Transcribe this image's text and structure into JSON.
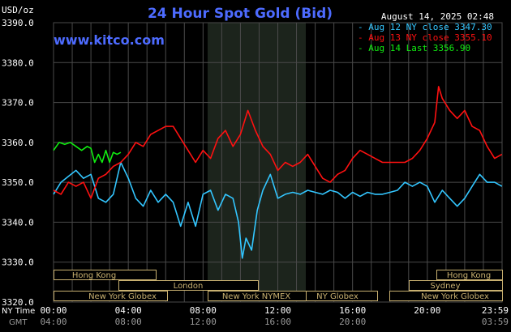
{
  "title": "24 Hour Spot Gold (Bid)",
  "unit_label": "USD/oz",
  "timestamp": "August 14, 2025 02:48",
  "watermark": "www.kitco.com",
  "row_labels": {
    "ny": "NY Time",
    "gmt": "GMT"
  },
  "colors": {
    "background": "#000000",
    "grid": "#4a4a4a",
    "nymex_shade": "#1c241c",
    "title": "#4d6bff",
    "aug12": "#33c6ff",
    "aug13": "#ff1111",
    "aug14": "#11ee11",
    "session_fill": "#000000",
    "session_stroke": "#c8b070",
    "session_text": "#c8b070",
    "axis_text": "#ffffff",
    "gmt_text": "#9a9a9a"
  },
  "legend": [
    {
      "label": "Aug 12 NY close 3347.30",
      "color": "#33c6ff"
    },
    {
      "label": "Aug 13 NY close 3355.10",
      "color": "#ff1111"
    },
    {
      "label": "Aug 14 Last 3356.90",
      "color": "#11ee11"
    }
  ],
  "sessions": [
    {
      "label": "Hong Kong"
    },
    {
      "label": "London"
    },
    {
      "label": "New York Globex"
    },
    {
      "label": "New York NYMEX"
    },
    {
      "label": "NY Globex"
    },
    {
      "label": "Hong Kong"
    },
    {
      "label": "Sydney"
    },
    {
      "label": "New York Globex"
    }
  ],
  "chart_data": {
    "type": "line",
    "ylim": [
      3320,
      3390
    ],
    "xlim": [
      0,
      24
    ],
    "yticks": [
      "3390.0",
      "3380.0",
      "3370.0",
      "3360.0",
      "3350.0",
      "3340.0",
      "3330.0",
      "3320.0"
    ],
    "xticks_ny": [
      "00:00",
      "04:00",
      "08:00",
      "12:00",
      "16:00",
      "20:00",
      "23:59"
    ],
    "xticks_gmt": [
      "04:00",
      "08:00",
      "12:00",
      "16:00",
      "20:00",
      "03:59"
    ],
    "series": [
      {
        "name": "Aug 12 NY close 3347.30",
        "color": "#33c6ff",
        "x": [
          0,
          0.4,
          0.8,
          1.2,
          1.6,
          2.0,
          2.4,
          2.8,
          3.2,
          3.6,
          4.0,
          4.4,
          4.8,
          5.2,
          5.6,
          6.0,
          6.4,
          6.8,
          7.2,
          7.6,
          8.0,
          8.4,
          8.8,
          9.2,
          9.6,
          9.9,
          10.1,
          10.3,
          10.6,
          10.9,
          11.2,
          11.6,
          12.0,
          12.4,
          12.8,
          13.2,
          13.6,
          14.0,
          14.4,
          14.8,
          15.2,
          15.6,
          16.0,
          16.4,
          16.8,
          17.2,
          17.6,
          18.0,
          18.4,
          18.8,
          19.2,
          19.6,
          20.0,
          20.4,
          20.8,
          21.2,
          21.6,
          22.0,
          22.4,
          22.8,
          23.2,
          23.6,
          23.99
        ],
        "y": [
          3347.0,
          3350.0,
          3351.5,
          3353.0,
          3351.0,
          3352.0,
          3346.0,
          3345.0,
          3347.0,
          3355.0,
          3351.0,
          3346.0,
          3344.0,
          3348.0,
          3345.0,
          3347.0,
          3345.0,
          3339.0,
          3345.0,
          3339.0,
          3347.0,
          3348.0,
          3343.0,
          3347.0,
          3346.0,
          3340.0,
          3331.0,
          3336.0,
          3333.0,
          3343.0,
          3348.0,
          3352.0,
          3346.0,
          3347.0,
          3347.5,
          3347.0,
          3348.0,
          3347.5,
          3347.0,
          3348.0,
          3347.5,
          3346.0,
          3347.5,
          3346.5,
          3347.5,
          3347.0,
          3347.0,
          3347.5,
          3348.0,
          3350.0,
          3349.0,
          3350.0,
          3349.0,
          3345.0,
          3348.0,
          3346.0,
          3344.0,
          3346.0,
          3349.0,
          3352.0,
          3350.0,
          3350.0,
          3349.0
        ]
      },
      {
        "name": "Aug 13 NY close 3355.10",
        "color": "#ff1111",
        "x": [
          0,
          0.4,
          0.8,
          1.2,
          1.6,
          2.0,
          2.4,
          2.8,
          3.2,
          3.6,
          4.0,
          4.4,
          4.8,
          5.2,
          5.6,
          6.0,
          6.4,
          6.8,
          7.2,
          7.6,
          8.0,
          8.4,
          8.8,
          9.2,
          9.6,
          10.0,
          10.4,
          10.8,
          11.2,
          11.6,
          12.0,
          12.4,
          12.8,
          13.2,
          13.6,
          14.0,
          14.4,
          14.8,
          15.2,
          15.6,
          16.0,
          16.4,
          16.8,
          17.2,
          17.6,
          18.0,
          18.4,
          18.8,
          19.2,
          19.6,
          20.0,
          20.4,
          20.6,
          20.8,
          21.2,
          21.6,
          22.0,
          22.4,
          22.8,
          23.2,
          23.6,
          23.99
        ],
        "y": [
          3348.0,
          3347.0,
          3350.0,
          3349.0,
          3350.0,
          3346.0,
          3351.0,
          3352.0,
          3354.0,
          3355.0,
          3357.0,
          3360.0,
          3359.0,
          3362.0,
          3363.0,
          3364.0,
          3364.0,
          3361.0,
          3358.0,
          3355.0,
          3358.0,
          3356.0,
          3361.0,
          3363.0,
          3359.0,
          3362.0,
          3368.0,
          3363.0,
          3359.0,
          3357.0,
          3353.0,
          3355.0,
          3354.0,
          3355.0,
          3357.0,
          3354.0,
          3351.0,
          3350.0,
          3352.0,
          3353.0,
          3356.0,
          3358.0,
          3357.0,
          3356.0,
          3355.0,
          3355.0,
          3355.0,
          3355.0,
          3356.0,
          3358.0,
          3361.0,
          3365.0,
          3374.0,
          3371.0,
          3368.0,
          3366.0,
          3368.0,
          3364.0,
          3363.0,
          3359.0,
          3356.0,
          3357.0
        ]
      },
      {
        "name": "Aug 14 Last 3356.90",
        "color": "#11ee11",
        "x": [
          0,
          0.3,
          0.6,
          0.9,
          1.2,
          1.5,
          1.8,
          2.0,
          2.2,
          2.4,
          2.6,
          2.8,
          3.0,
          3.2,
          3.4,
          3.6
        ],
        "y": [
          3358.0,
          3360.0,
          3359.5,
          3360.0,
          3359.0,
          3358.0,
          3359.0,
          3358.5,
          3355.0,
          3357.0,
          3355.0,
          3358.0,
          3355.0,
          3357.5,
          3357.0,
          3357.5
        ]
      }
    ]
  }
}
